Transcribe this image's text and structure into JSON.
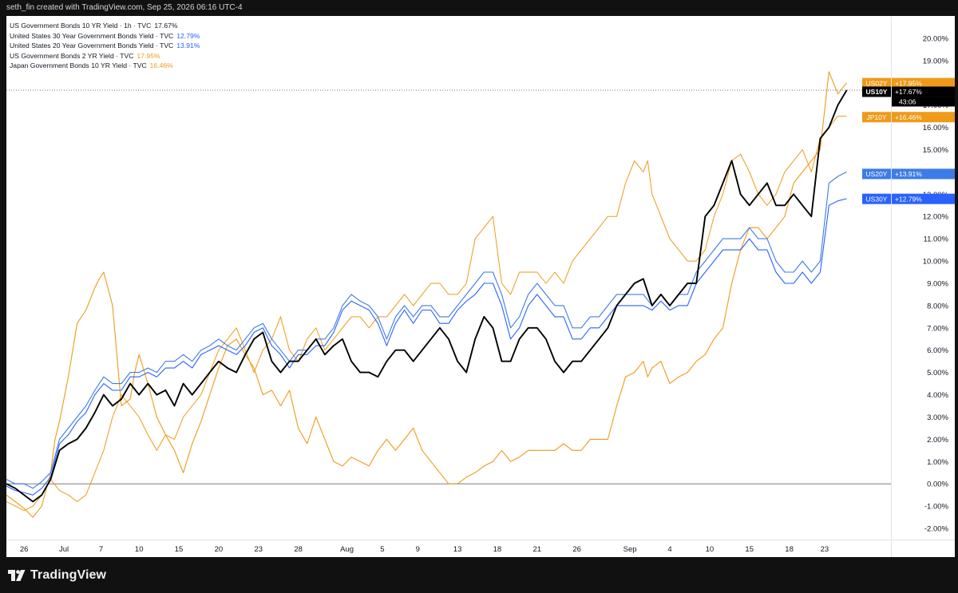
{
  "header": {
    "credit": "seth_fin created with TradingView.com, Sep 25, 2026 06:16 UTC-4"
  },
  "legend": [
    {
      "label": "US Government Bonds 10 YR Yield · 1h · TVC",
      "value": "17.67%",
      "color": "#131722"
    },
    {
      "label": "United States 30 Year Government Bonds Yield · TVC",
      "value": "12.79%",
      "color": "#2962ff"
    },
    {
      "label": "United States 20 Year Government Bonds Yield · TVC",
      "value": "13.91%",
      "color": "#2962ff"
    },
    {
      "label": "US Government Bonds 2 YR Yield · TVC",
      "value": "17.95%",
      "color": "#ef9a18"
    },
    {
      "label": "Japan Government Bonds 10 YR Yield · TVC",
      "value": "16.46%",
      "color": "#ef9a18"
    }
  ],
  "footer": {
    "brand": "TradingView"
  },
  "chart_data": {
    "type": "line",
    "title": "",
    "xlabel": "",
    "ylabel": "",
    "ylim": [
      -2.5,
      21
    ],
    "y_ticks": [
      -2,
      -1,
      0,
      1,
      2,
      3,
      4,
      5,
      6,
      7,
      8,
      9,
      10,
      11,
      12,
      13,
      14,
      15,
      16,
      17,
      18,
      19,
      20
    ],
    "y_tick_format": "percent_2dp",
    "x_axis_labels": [
      "26",
      "Jul",
      "7",
      "10",
      "15",
      "20",
      "23",
      "28",
      "Aug",
      "5",
      "9",
      "13",
      "18",
      "21",
      "26",
      "Sep",
      "4",
      "10",
      "15",
      "18",
      "23"
    ],
    "x_range": [
      0,
      100
    ],
    "x_tick_positions": [
      2,
      6.5,
      10.7,
      15,
      19.5,
      24,
      28.5,
      33,
      38.5,
      42.5,
      46.5,
      51,
      55.5,
      60,
      64.5,
      70.5,
      75,
      79.5,
      84,
      88.5,
      92.5
    ],
    "zero_line": 0,
    "last_price_level": 17.67,
    "series": [
      {
        "name": "US02Y",
        "color": "#ef9a18",
        "last": 17.95,
        "tag": "US02Y",
        "tag_value": "+17.95%",
        "line_width": 1.1,
        "x": [
          0,
          1,
          2,
          3,
          4,
          5,
          5.5,
          6,
          7,
          8,
          9,
          10,
          10.5,
          11,
          12,
          13,
          14,
          14.5,
          15,
          16,
          17,
          18,
          19,
          20,
          21,
          22,
          23,
          24,
          25,
          26,
          27,
          28,
          29,
          30,
          31,
          32,
          33,
          34,
          35,
          36,
          37,
          38,
          39,
          40,
          41,
          42,
          43,
          44,
          45,
          46,
          47,
          48,
          49,
          50,
          51,
          52,
          53,
          54,
          55,
          56,
          57,
          58,
          59,
          60,
          61,
          62,
          63,
          64,
          65,
          66,
          67,
          68,
          69,
          70,
          71,
          72,
          72.5,
          73,
          74,
          75,
          76,
          77,
          78,
          79,
          80,
          81,
          82,
          83,
          84,
          85,
          86,
          87,
          88,
          89,
          90,
          91,
          92,
          93,
          94,
          95
        ],
        "y": [
          -0.5,
          -0.8,
          -1.1,
          -1.5,
          -1.0,
          0.5,
          2.0,
          2.8,
          4.8,
          7.2,
          7.8,
          8.8,
          9.2,
          9.5,
          8.0,
          3.5,
          3.8,
          5.0,
          5.8,
          4.5,
          3.0,
          2.2,
          1.5,
          0.5,
          1.8,
          2.8,
          4.0,
          5.2,
          6.2,
          6.5,
          5.8,
          5.2,
          4.0,
          4.2,
          3.5,
          4.2,
          2.5,
          1.8,
          3.0,
          2.0,
          1.0,
          0.8,
          1.2,
          1.0,
          0.8,
          1.5,
          2.0,
          1.5,
          2.0,
          2.5,
          1.5,
          1.0,
          0.5,
          0.0,
          0.0,
          0.3,
          0.5,
          0.8,
          1.0,
          1.5,
          1.0,
          1.2,
          1.5,
          1.5,
          1.5,
          1.5,
          1.8,
          1.5,
          1.5,
          2.0,
          2.0,
          2.0,
          3.5,
          4.8,
          5.0,
          5.5,
          4.8,
          5.2,
          5.5,
          4.5,
          4.8,
          5.0,
          5.5,
          5.8,
          6.5,
          7.0,
          9.0,
          10.5,
          11.5,
          11.5,
          11.0,
          11.5,
          12.0,
          13.5,
          14.0,
          14.5,
          15.0,
          18.5,
          17.5,
          18.0
        ]
      },
      {
        "name": "JP10Y",
        "color": "#ef9a18",
        "last": 16.46,
        "tag": "JP10Y",
        "tag_value": "+16.46%",
        "line_width": 1.0,
        "x": [
          0,
          1,
          2,
          3,
          4,
          5,
          6,
          7,
          8,
          9,
          10,
          11,
          12,
          13,
          14,
          15,
          16,
          17,
          18,
          19,
          20,
          21,
          22,
          23,
          24,
          25,
          26,
          27,
          28,
          29,
          30,
          31,
          32,
          33,
          34,
          35,
          36,
          37,
          38,
          39,
          40,
          41,
          42,
          43,
          44,
          45,
          46,
          47,
          48,
          49,
          50,
          51,
          52,
          53,
          54,
          55,
          56,
          57,
          58,
          59,
          60,
          61,
          62,
          63,
          64,
          65,
          66,
          67,
          68,
          69,
          70,
          71,
          72,
          72.5,
          73,
          74,
          75,
          76,
          77,
          78,
          79,
          80,
          81,
          82,
          83,
          84,
          85,
          86,
          87,
          88,
          89,
          90,
          91,
          92,
          93,
          94,
          95
        ],
        "y": [
          -0.8,
          -1.0,
          -1.2,
          -1.0,
          -0.5,
          0.2,
          -0.3,
          -0.5,
          -0.8,
          -0.5,
          0.5,
          1.5,
          3.0,
          4.0,
          3.5,
          3.0,
          2.2,
          1.5,
          2.2,
          2.0,
          3.0,
          3.5,
          4.0,
          5.0,
          6.0,
          6.5,
          7.0,
          6.0,
          5.0,
          6.0,
          6.5,
          7.5,
          6.0,
          5.5,
          6.5,
          7.0,
          6.0,
          6.5,
          7.0,
          7.5,
          7.5,
          7.0,
          7.5,
          7.5,
          8.0,
          8.5,
          8.0,
          8.5,
          9.0,
          9.0,
          8.5,
          8.5,
          9.0,
          11.0,
          11.5,
          12.0,
          9.0,
          8.5,
          9.5,
          9.5,
          9.5,
          9.0,
          9.5,
          9.0,
          10.0,
          10.5,
          11.0,
          11.5,
          12.0,
          12.0,
          13.5,
          14.5,
          14.0,
          14.5,
          13.0,
          12.0,
          11.0,
          10.5,
          10.0,
          10.0,
          10.5,
          12.0,
          13.0,
          14.5,
          14.8,
          14.0,
          13.0,
          12.5,
          13.0,
          14.0,
          14.5,
          15.0,
          14.0,
          15.5,
          16.0,
          16.5,
          16.5
        ]
      },
      {
        "name": "US20Y",
        "color": "#3d7ce6",
        "last": 13.91,
        "tag": "US20Y",
        "tag_value": "+13.91%",
        "line_width": 1.1,
        "x": [
          0,
          1,
          2,
          3,
          4,
          5,
          6,
          7,
          8,
          9,
          10,
          11,
          12,
          13,
          14,
          15,
          16,
          17,
          18,
          19,
          20,
          21,
          22,
          23,
          24,
          25,
          26,
          27,
          28,
          29,
          30,
          31,
          32,
          33,
          34,
          35,
          36,
          37,
          38,
          39,
          40,
          41,
          42,
          43,
          44,
          45,
          46,
          47,
          48,
          49,
          50,
          51,
          52,
          53,
          54,
          55,
          56,
          57,
          58,
          59,
          60,
          61,
          62,
          63,
          64,
          65,
          66,
          67,
          68,
          69,
          70,
          71,
          72,
          73,
          74,
          75,
          76,
          77,
          78,
          79,
          80,
          81,
          82,
          83,
          84,
          85,
          86,
          87,
          88,
          89,
          90,
          91,
          92,
          93,
          94,
          95
        ],
        "y": [
          0.2,
          0.0,
          0.0,
          -0.2,
          0.1,
          0.5,
          2.0,
          2.5,
          3.0,
          3.5,
          4.2,
          4.8,
          4.5,
          4.5,
          5.0,
          5.0,
          5.2,
          5.0,
          5.5,
          5.5,
          5.8,
          5.5,
          6.0,
          6.2,
          6.5,
          6.2,
          6.0,
          6.5,
          7.0,
          7.2,
          6.5,
          6.0,
          5.5,
          6.0,
          6.0,
          6.5,
          6.5,
          7.0,
          8.0,
          8.5,
          8.2,
          8.0,
          7.5,
          6.5,
          7.5,
          8.0,
          7.5,
          8.0,
          8.0,
          7.5,
          7.5,
          8.0,
          8.5,
          9.0,
          9.5,
          9.5,
          8.5,
          7.0,
          7.5,
          8.5,
          9.0,
          8.5,
          8.0,
          8.0,
          7.0,
          7.0,
          7.5,
          7.5,
          8.0,
          8.5,
          8.5,
          8.5,
          8.5,
          8.0,
          8.5,
          8.0,
          8.5,
          8.5,
          9.5,
          10.0,
          10.5,
          11.0,
          11.0,
          11.0,
          11.5,
          11.0,
          11.0,
          10.0,
          9.5,
          9.5,
          10.0,
          9.5,
          10.0,
          13.5,
          13.8,
          14.0
        ]
      },
      {
        "name": "US30Y",
        "color": "#2962ff",
        "last": 12.79,
        "tag": "US30Y",
        "tag_value": "+12.79%",
        "line_width": 1.1,
        "x": [
          0,
          1,
          2,
          3,
          4,
          5,
          6,
          7,
          8,
          9,
          10,
          11,
          12,
          13,
          14,
          15,
          16,
          17,
          18,
          19,
          20,
          21,
          22,
          23,
          24,
          25,
          26,
          27,
          28,
          29,
          30,
          31,
          32,
          33,
          34,
          35,
          36,
          37,
          38,
          39,
          40,
          41,
          42,
          43,
          44,
          45,
          46,
          47,
          48,
          49,
          50,
          51,
          52,
          53,
          54,
          55,
          56,
          57,
          58,
          59,
          60,
          61,
          62,
          63,
          64,
          65,
          66,
          67,
          68,
          69,
          70,
          71,
          72,
          73,
          74,
          75,
          76,
          77,
          78,
          79,
          80,
          81,
          82,
          83,
          84,
          85,
          86,
          87,
          88,
          89,
          90,
          91,
          92,
          93,
          94,
          95
        ],
        "y": [
          -0.1,
          -0.3,
          -0.4,
          -0.5,
          -0.2,
          0.3,
          1.8,
          2.2,
          2.8,
          3.2,
          4.0,
          4.5,
          4.2,
          4.2,
          4.8,
          4.8,
          5.0,
          4.8,
          5.2,
          5.2,
          5.5,
          5.2,
          5.8,
          6.0,
          6.2,
          6.0,
          5.8,
          6.2,
          6.8,
          7.0,
          6.2,
          5.8,
          5.2,
          5.8,
          5.8,
          6.2,
          6.2,
          6.8,
          7.8,
          8.2,
          8.0,
          7.8,
          7.2,
          6.2,
          7.2,
          7.8,
          7.2,
          7.8,
          7.8,
          7.2,
          7.2,
          7.8,
          8.2,
          8.5,
          9.0,
          9.0,
          8.0,
          6.5,
          7.0,
          8.0,
          8.5,
          8.0,
          7.5,
          7.5,
          6.5,
          6.5,
          7.0,
          7.0,
          7.5,
          8.0,
          8.0,
          8.0,
          8.0,
          7.8,
          8.2,
          7.8,
          8.0,
          8.0,
          9.0,
          9.5,
          10.0,
          10.5,
          10.5,
          10.5,
          11.0,
          10.5,
          10.5,
          9.5,
          9.0,
          9.0,
          9.5,
          9.0,
          9.5,
          12.5,
          12.7,
          12.8
        ]
      },
      {
        "name": "US10Y",
        "color": "#000000",
        "last": 17.67,
        "tag": "US10Y",
        "tag_value": "+17.67%",
        "countdown": "43:06",
        "line_width": 1.9,
        "x": [
          0,
          1,
          2,
          3,
          4,
          5,
          6,
          7,
          8,
          9,
          10,
          11,
          12,
          13,
          14,
          15,
          16,
          17,
          18,
          19,
          20,
          21,
          22,
          23,
          24,
          25,
          26,
          27,
          28,
          29,
          30,
          31,
          32,
          33,
          34,
          35,
          36,
          37,
          38,
          39,
          40,
          41,
          42,
          43,
          44,
          45,
          46,
          47,
          48,
          49,
          50,
          51,
          52,
          53,
          54,
          55,
          56,
          57,
          58,
          59,
          60,
          61,
          62,
          63,
          64,
          65,
          66,
          67,
          68,
          69,
          70,
          71,
          72,
          73,
          74,
          75,
          76,
          77,
          78,
          79,
          80,
          81,
          82,
          83,
          84,
          85,
          86,
          87,
          88,
          89,
          90,
          91,
          92,
          93,
          94,
          95
        ],
        "y": [
          0.0,
          -0.2,
          -0.5,
          -0.8,
          -0.5,
          0.2,
          1.5,
          1.8,
          2.0,
          2.5,
          3.2,
          4.0,
          3.5,
          3.8,
          4.5,
          4.0,
          4.5,
          4.0,
          4.2,
          3.5,
          4.5,
          4.0,
          4.5,
          5.0,
          5.5,
          5.2,
          5.0,
          5.8,
          6.5,
          6.8,
          5.5,
          5.0,
          5.5,
          5.5,
          6.0,
          6.5,
          5.8,
          6.2,
          6.5,
          5.5,
          5.0,
          5.0,
          4.8,
          5.5,
          6.0,
          6.0,
          5.5,
          6.0,
          6.5,
          7.0,
          6.5,
          5.5,
          5.0,
          6.5,
          7.5,
          7.0,
          5.5,
          5.5,
          6.5,
          7.0,
          7.0,
          6.5,
          5.5,
          5.0,
          5.5,
          5.5,
          6.0,
          6.5,
          7.0,
          8.0,
          8.5,
          9.0,
          9.2,
          8.0,
          8.5,
          8.0,
          8.5,
          9.0,
          9.0,
          12.0,
          12.5,
          13.5,
          14.5,
          13.0,
          12.5,
          13.0,
          13.5,
          12.5,
          12.5,
          13.0,
          12.5,
          12.0,
          15.5,
          16.0,
          17.0,
          17.67
        ]
      }
    ]
  }
}
